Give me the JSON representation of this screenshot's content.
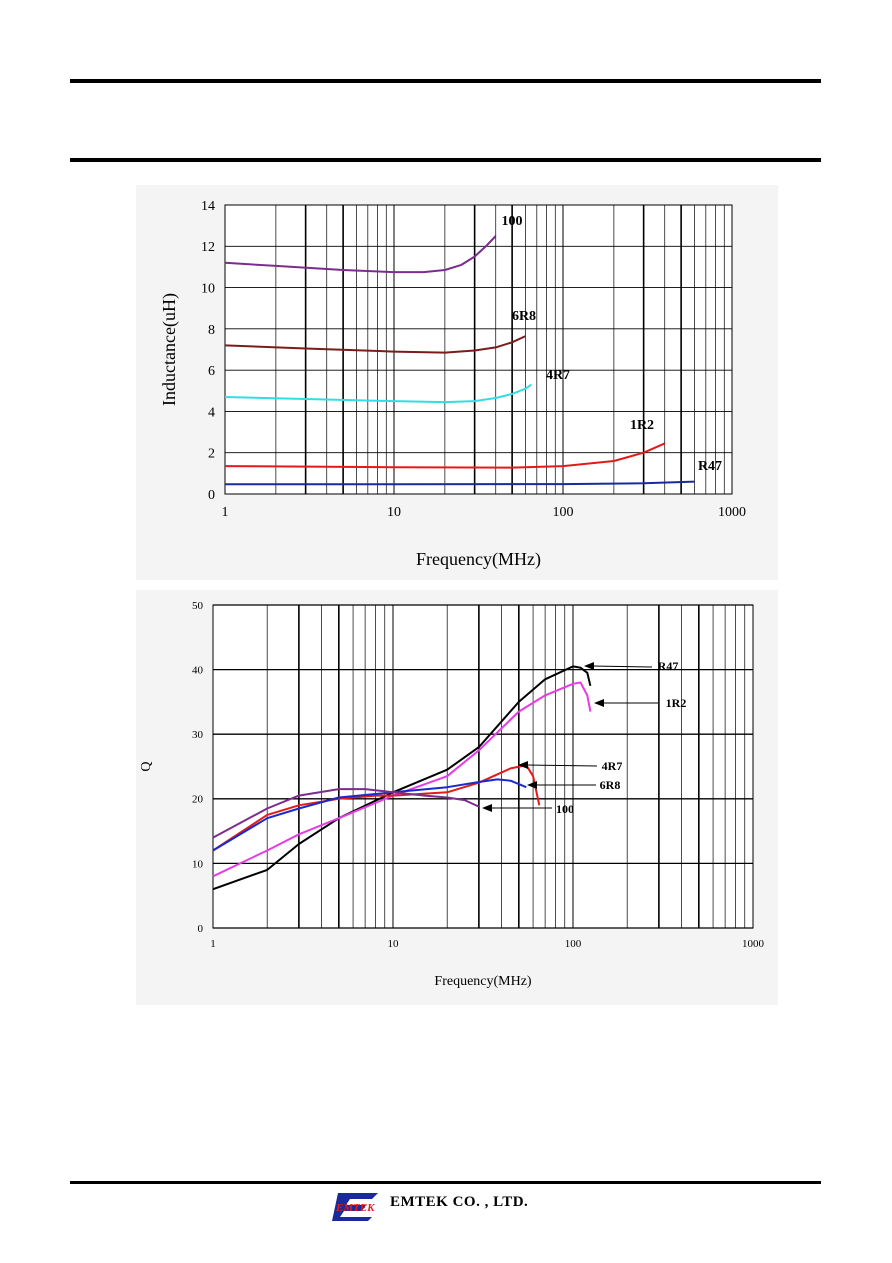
{
  "chart_data": [
    {
      "type": "line",
      "xscale": "log",
      "xlim": [
        1,
        1000
      ],
      "ylim": [
        0,
        14
      ],
      "xlabel": "Frequency(MHz)",
      "ylabel": "Inductance(uH)",
      "xticks": [
        "1",
        "10",
        "100",
        "1000"
      ],
      "yticks": [
        "0",
        "2",
        "4",
        "6",
        "8",
        "10",
        "12",
        "14"
      ],
      "grid": true,
      "series": [
        {
          "name": "100",
          "color": "#7b2d8e",
          "x": [
            1,
            2,
            5,
            10,
            15,
            20,
            25,
            30,
            35,
            40
          ],
          "y": [
            11.2,
            11.05,
            10.85,
            10.75,
            10.75,
            10.85,
            11.1,
            11.5,
            12.0,
            12.5
          ]
        },
        {
          "name": "6R8",
          "color": "#7a1c1c",
          "x": [
            1,
            3,
            10,
            20,
            30,
            40,
            50,
            60
          ],
          "y": [
            7.2,
            7.05,
            6.9,
            6.85,
            6.95,
            7.1,
            7.35,
            7.65
          ]
        },
        {
          "name": "4R7",
          "color": "#33dde6",
          "x": [
            1,
            3,
            10,
            20,
            30,
            40,
            50,
            60,
            65
          ],
          "y": [
            4.7,
            4.6,
            4.5,
            4.45,
            4.5,
            4.65,
            4.85,
            5.1,
            5.3
          ]
        },
        {
          "name": "1R2",
          "color": "#e41a1a",
          "x": [
            1,
            10,
            50,
            100,
            200,
            300,
            400
          ],
          "y": [
            1.35,
            1.3,
            1.28,
            1.35,
            1.6,
            2.0,
            2.45
          ]
        },
        {
          "name": "R47",
          "color": "#1a2a9a",
          "x": [
            1,
            10,
            100,
            300,
            600
          ],
          "y": [
            0.47,
            0.47,
            0.48,
            0.52,
            0.6
          ]
        }
      ]
    },
    {
      "type": "line",
      "xscale": "log",
      "xlim": [
        1,
        1000
      ],
      "ylim": [
        0,
        50
      ],
      "xlabel": "Frequency(MHz)",
      "ylabel": "Q",
      "xticks": [
        "1",
        "10",
        "100",
        "1000"
      ],
      "yticks": [
        "0",
        "10",
        "20",
        "30",
        "40",
        "50"
      ],
      "grid": true,
      "series": [
        {
          "name": "R47",
          "color": "#000000",
          "x": [
            1,
            2,
            3,
            5,
            10,
            20,
            30,
            50,
            70,
            100,
            110,
            120,
            125
          ],
          "y": [
            6,
            9,
            13,
            17,
            21,
            24.5,
            28,
            35,
            38.5,
            40.5,
            40.3,
            39.5,
            37.5
          ]
        },
        {
          "name": "1R2",
          "color": "#e83ae8",
          "x": [
            1,
            2,
            3,
            5,
            10,
            20,
            30,
            50,
            70,
            100,
            110,
            120,
            125
          ],
          "y": [
            8,
            12,
            14.5,
            17,
            20.5,
            23.5,
            27.5,
            33.5,
            36,
            37.8,
            38,
            36,
            33.5
          ]
        },
        {
          "name": "4R7",
          "color": "#e41a1a",
          "x": [
            1,
            2,
            3,
            5,
            8,
            10,
            20,
            30,
            45,
            55,
            60,
            65
          ],
          "y": [
            12,
            17.5,
            19,
            20,
            20.5,
            20.5,
            21,
            22.5,
            24.7,
            25.2,
            23.5,
            19
          ]
        },
        {
          "name": "6R8",
          "color": "#1a2acc",
          "x": [
            1,
            2,
            3,
            5,
            10,
            20,
            30,
            38,
            45,
            55
          ],
          "y": [
            12,
            17,
            18.5,
            20.2,
            21,
            21.8,
            22.6,
            23,
            22.8,
            21.8
          ]
        },
        {
          "name": "100",
          "color": "#7b2d8e",
          "x": [
            1,
            2,
            3,
            5,
            7,
            10,
            15,
            20,
            25,
            30
          ],
          "y": [
            14,
            18.5,
            20.5,
            21.5,
            21.5,
            21,
            20.5,
            20.2,
            19.8,
            18.8
          ]
        }
      ]
    }
  ],
  "footer": {
    "company": "EMTEK  CO. , LTD.",
    "logo_text": "EMTEK"
  }
}
